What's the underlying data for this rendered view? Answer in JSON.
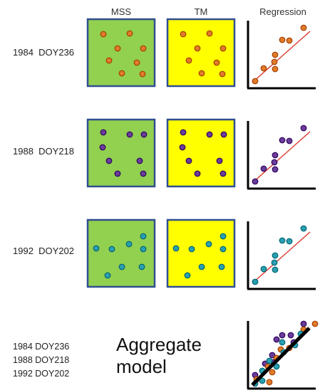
{
  "headers": {
    "mss": "MSS",
    "tm": "TM",
    "regression": "Regression"
  },
  "colors": {
    "mss_fill": "#92d050",
    "tm_fill": "#ffff00",
    "panel_border": "#2f4f8f",
    "axis": "#000000",
    "trend_line": "#d9382b",
    "aggregate_line": "#000000",
    "point_1984": "#e07b2a",
    "point_1988": "#6a3d9a",
    "point_1992": "#2aa0b0"
  },
  "rows": [
    {
      "year": "1984",
      "doy": "DOY236",
      "color_key": "point_1984"
    },
    {
      "year": "1988",
      "doy": "DOY218",
      "color_key": "point_1988"
    },
    {
      "year": "1992",
      "doy": "DOY202",
      "color_key": "point_1992"
    }
  ],
  "aggregate": {
    "title_line1": "Aggregate",
    "title_line2": "model",
    "labels": [
      "1984  DOY236",
      "1988  DOY218",
      "1992  DOY202"
    ]
  }
}
